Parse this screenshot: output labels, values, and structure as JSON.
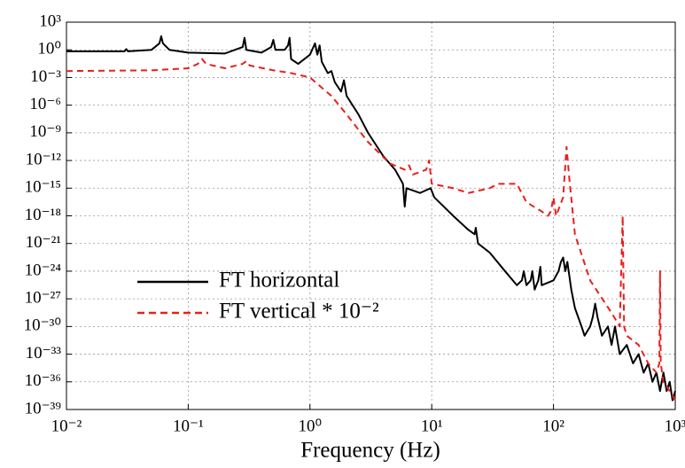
{
  "chart_data": {
    "type": "line",
    "xlabel": "Frequency (Hz)",
    "xscale": "log",
    "yscale": "log",
    "xlim": [
      0.01,
      1000
    ],
    "ylim": [
      1e-39,
      1000
    ],
    "xticks": [
      {
        "value": 0.01,
        "label": "10⁻²"
      },
      {
        "value": 0.1,
        "label": "10⁻¹"
      },
      {
        "value": 1,
        "label": "10⁰"
      },
      {
        "value": 10,
        "label": "10¹"
      },
      {
        "value": 100,
        "label": "10²"
      },
      {
        "value": 1000,
        "label": "10³"
      }
    ],
    "yticks": [
      {
        "value": 1000,
        "label": "10³"
      },
      {
        "value": 1,
        "label": "10⁰"
      },
      {
        "value": 0.001,
        "label": "10⁻³"
      },
      {
        "value": 1e-06,
        "label": "10⁻⁶"
      },
      {
        "value": 1e-09,
        "label": "10⁻⁹"
      },
      {
        "value": 1e-12,
        "label": "10⁻¹²"
      },
      {
        "value": 1e-15,
        "label": "10⁻¹⁵"
      },
      {
        "value": 1e-18,
        "label": "10⁻¹⁸"
      },
      {
        "value": 1e-21,
        "label": "10⁻²¹"
      },
      {
        "value": 1e-24,
        "label": "10⁻²⁴"
      },
      {
        "value": 1e-27,
        "label": "10⁻²⁷"
      },
      {
        "value": 1e-30,
        "label": "10⁻³⁰"
      },
      {
        "value": 1e-33,
        "label": "10⁻³³"
      },
      {
        "value": 1e-36,
        "label": "10⁻³⁶"
      },
      {
        "value": 1e-39,
        "label": "10⁻³⁹"
      }
    ],
    "grid": true,
    "legend": "lower left",
    "series": [
      {
        "name": "FT horizontal",
        "color": "#000000",
        "linestyle": "solid",
        "x": [
          0.01,
          0.02,
          0.03,
          0.031,
          0.032,
          0.05,
          0.058,
          0.06,
          0.062,
          0.07,
          0.1,
          0.2,
          0.28,
          0.29,
          0.3,
          0.4,
          0.48,
          0.5,
          0.52,
          0.62,
          0.66,
          0.68,
          0.7,
          0.8,
          1.0,
          1.1,
          1.15,
          1.2,
          1.25,
          1.4,
          1.5,
          1.6,
          1.8,
          1.9,
          2,
          2.5,
          3,
          4,
          5,
          5.8,
          6,
          6.2,
          8,
          9.8,
          10,
          10.5,
          15,
          20,
          22.5,
          23,
          24,
          30,
          40,
          50,
          55,
          57,
          60,
          65,
          67,
          70,
          75,
          78,
          80,
          100,
          110,
          115,
          120,
          125,
          130,
          140,
          150,
          170,
          180,
          200,
          210,
          220,
          230,
          250,
          280,
          300,
          320,
          350,
          400,
          450,
          500,
          550,
          600,
          650,
          700,
          750,
          800,
          850,
          900,
          950,
          1000
        ],
        "values": [
          0.7,
          0.7,
          0.7,
          1.2,
          0.7,
          1,
          5,
          30,
          5,
          1,
          0.5,
          0.4,
          2,
          20,
          1,
          0.5,
          2,
          12,
          1,
          1,
          3,
          20,
          0.1,
          0.03,
          0.3,
          5,
          0.3,
          3,
          0.05,
          0.003,
          0.005,
          0.0003,
          3e-05,
          0.0005,
          1e-05,
          1e-07,
          1e-09,
          3e-12,
          1e-13,
          3e-15,
          1e-17,
          1e-15,
          3e-16,
          1e-15,
          5e-16,
          1e-16,
          1e-18,
          3e-20,
          1e-20,
          5e-20,
          1e-21,
          1e-22,
          1e-24,
          3e-26,
          1e-25,
          1e-24,
          3e-26,
          1e-25,
          1e-24,
          1e-26,
          1e-25,
          3e-24,
          3e-26,
          1e-25,
          1e-24,
          1e-23,
          3e-23,
          1e-24,
          1e-23,
          1e-26,
          1e-28,
          1e-30,
          1e-31,
          1e-30,
          1e-29,
          3e-28,
          1e-29,
          1e-31,
          1e-30,
          1e-32,
          1e-30,
          1e-33,
          1e-32,
          1e-34,
          1e-33,
          1e-35,
          1e-34,
          1e-36,
          1e-35,
          1e-37,
          1e-35,
          1e-37,
          1e-36,
          1e-38,
          1e-37
        ]
      },
      {
        "name": "FT vertical * 10⁻²",
        "color": "#e8201c",
        "linestyle": "dashed",
        "x": [
          0.01,
          0.05,
          0.1,
          0.12,
          0.13,
          0.14,
          0.2,
          0.28,
          0.3,
          0.32,
          0.5,
          0.7,
          1,
          1.5,
          2,
          3,
          4.5,
          6,
          6.5,
          7,
          9,
          9.5,
          10,
          15,
          20,
          30,
          35,
          50,
          60,
          80,
          90,
          95,
          100,
          105,
          120,
          128,
          135,
          150,
          200,
          300,
          350,
          370,
          380,
          400,
          500,
          600,
          700,
          740,
          750,
          760,
          800,
          900,
          1000
        ],
        "values": [
          0.005,
          0.006,
          0.01,
          0.03,
          0.1,
          0.03,
          0.01,
          0.03,
          0.06,
          0.02,
          0.006,
          0.003,
          0.001,
          1e-05,
          1e-07,
          1e-10,
          5e-13,
          1e-13,
          3e-13,
          3e-14,
          1e-13,
          1e-12,
          3e-15,
          1e-15,
          3e-16,
          1e-15,
          3e-15,
          3e-15,
          3e-17,
          3e-18,
          1e-18,
          3e-18,
          1e-16,
          1e-18,
          1e-16,
          3e-11,
          1e-14,
          1e-20,
          1e-25,
          3e-29,
          1e-30,
          1e-18,
          1e-30,
          1e-31,
          1e-32,
          1e-34,
          1e-35,
          1e-34,
          1e-24,
          1e-34,
          1e-36,
          1e-37,
          1e-38
        ]
      }
    ]
  }
}
